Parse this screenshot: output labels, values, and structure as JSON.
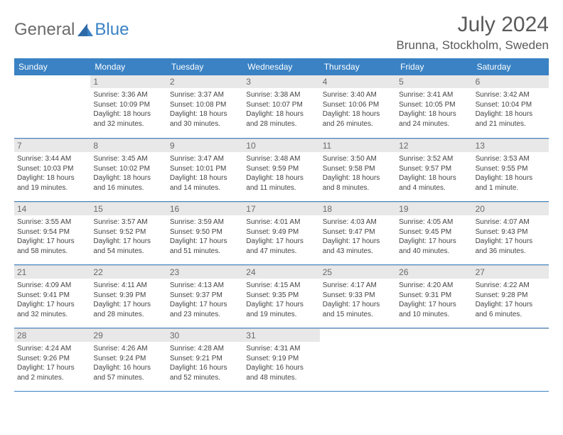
{
  "brand": {
    "part1": "General",
    "part2": "Blue"
  },
  "title": "July 2024",
  "location": "Brunna, Stockholm, Sweden",
  "colors": {
    "header_bg": "#3a82c4",
    "header_text": "#ffffff",
    "daynum_bg": "#e8e8e8",
    "daynum_text": "#6a6a6a",
    "body_text": "#444444",
    "rule": "#3a82c4"
  },
  "day_names": [
    "Sunday",
    "Monday",
    "Tuesday",
    "Wednesday",
    "Thursday",
    "Friday",
    "Saturday"
  ],
  "weeks": [
    [
      null,
      {
        "n": "1",
        "sr": "3:36 AM",
        "ss": "10:09 PM",
        "dl": "18 hours and 32 minutes."
      },
      {
        "n": "2",
        "sr": "3:37 AM",
        "ss": "10:08 PM",
        "dl": "18 hours and 30 minutes."
      },
      {
        "n": "3",
        "sr": "3:38 AM",
        "ss": "10:07 PM",
        "dl": "18 hours and 28 minutes."
      },
      {
        "n": "4",
        "sr": "3:40 AM",
        "ss": "10:06 PM",
        "dl": "18 hours and 26 minutes."
      },
      {
        "n": "5",
        "sr": "3:41 AM",
        "ss": "10:05 PM",
        "dl": "18 hours and 24 minutes."
      },
      {
        "n": "6",
        "sr": "3:42 AM",
        "ss": "10:04 PM",
        "dl": "18 hours and 21 minutes."
      }
    ],
    [
      {
        "n": "7",
        "sr": "3:44 AM",
        "ss": "10:03 PM",
        "dl": "18 hours and 19 minutes."
      },
      {
        "n": "8",
        "sr": "3:45 AM",
        "ss": "10:02 PM",
        "dl": "18 hours and 16 minutes."
      },
      {
        "n": "9",
        "sr": "3:47 AM",
        "ss": "10:01 PM",
        "dl": "18 hours and 14 minutes."
      },
      {
        "n": "10",
        "sr": "3:48 AM",
        "ss": "9:59 PM",
        "dl": "18 hours and 11 minutes."
      },
      {
        "n": "11",
        "sr": "3:50 AM",
        "ss": "9:58 PM",
        "dl": "18 hours and 8 minutes."
      },
      {
        "n": "12",
        "sr": "3:52 AM",
        "ss": "9:57 PM",
        "dl": "18 hours and 4 minutes."
      },
      {
        "n": "13",
        "sr": "3:53 AM",
        "ss": "9:55 PM",
        "dl": "18 hours and 1 minute."
      }
    ],
    [
      {
        "n": "14",
        "sr": "3:55 AM",
        "ss": "9:54 PM",
        "dl": "17 hours and 58 minutes."
      },
      {
        "n": "15",
        "sr": "3:57 AM",
        "ss": "9:52 PM",
        "dl": "17 hours and 54 minutes."
      },
      {
        "n": "16",
        "sr": "3:59 AM",
        "ss": "9:50 PM",
        "dl": "17 hours and 51 minutes."
      },
      {
        "n": "17",
        "sr": "4:01 AM",
        "ss": "9:49 PM",
        "dl": "17 hours and 47 minutes."
      },
      {
        "n": "18",
        "sr": "4:03 AM",
        "ss": "9:47 PM",
        "dl": "17 hours and 43 minutes."
      },
      {
        "n": "19",
        "sr": "4:05 AM",
        "ss": "9:45 PM",
        "dl": "17 hours and 40 minutes."
      },
      {
        "n": "20",
        "sr": "4:07 AM",
        "ss": "9:43 PM",
        "dl": "17 hours and 36 minutes."
      }
    ],
    [
      {
        "n": "21",
        "sr": "4:09 AM",
        "ss": "9:41 PM",
        "dl": "17 hours and 32 minutes."
      },
      {
        "n": "22",
        "sr": "4:11 AM",
        "ss": "9:39 PM",
        "dl": "17 hours and 28 minutes."
      },
      {
        "n": "23",
        "sr": "4:13 AM",
        "ss": "9:37 PM",
        "dl": "17 hours and 23 minutes."
      },
      {
        "n": "24",
        "sr": "4:15 AM",
        "ss": "9:35 PM",
        "dl": "17 hours and 19 minutes."
      },
      {
        "n": "25",
        "sr": "4:17 AM",
        "ss": "9:33 PM",
        "dl": "17 hours and 15 minutes."
      },
      {
        "n": "26",
        "sr": "4:20 AM",
        "ss": "9:31 PM",
        "dl": "17 hours and 10 minutes."
      },
      {
        "n": "27",
        "sr": "4:22 AM",
        "ss": "9:28 PM",
        "dl": "17 hours and 6 minutes."
      }
    ],
    [
      {
        "n": "28",
        "sr": "4:24 AM",
        "ss": "9:26 PM",
        "dl": "17 hours and 2 minutes."
      },
      {
        "n": "29",
        "sr": "4:26 AM",
        "ss": "9:24 PM",
        "dl": "16 hours and 57 minutes."
      },
      {
        "n": "30",
        "sr": "4:28 AM",
        "ss": "9:21 PM",
        "dl": "16 hours and 52 minutes."
      },
      {
        "n": "31",
        "sr": "4:31 AM",
        "ss": "9:19 PM",
        "dl": "16 hours and 48 minutes."
      },
      null,
      null,
      null
    ]
  ],
  "labels": {
    "sunrise": "Sunrise:",
    "sunset": "Sunset:",
    "daylight": "Daylight:"
  }
}
